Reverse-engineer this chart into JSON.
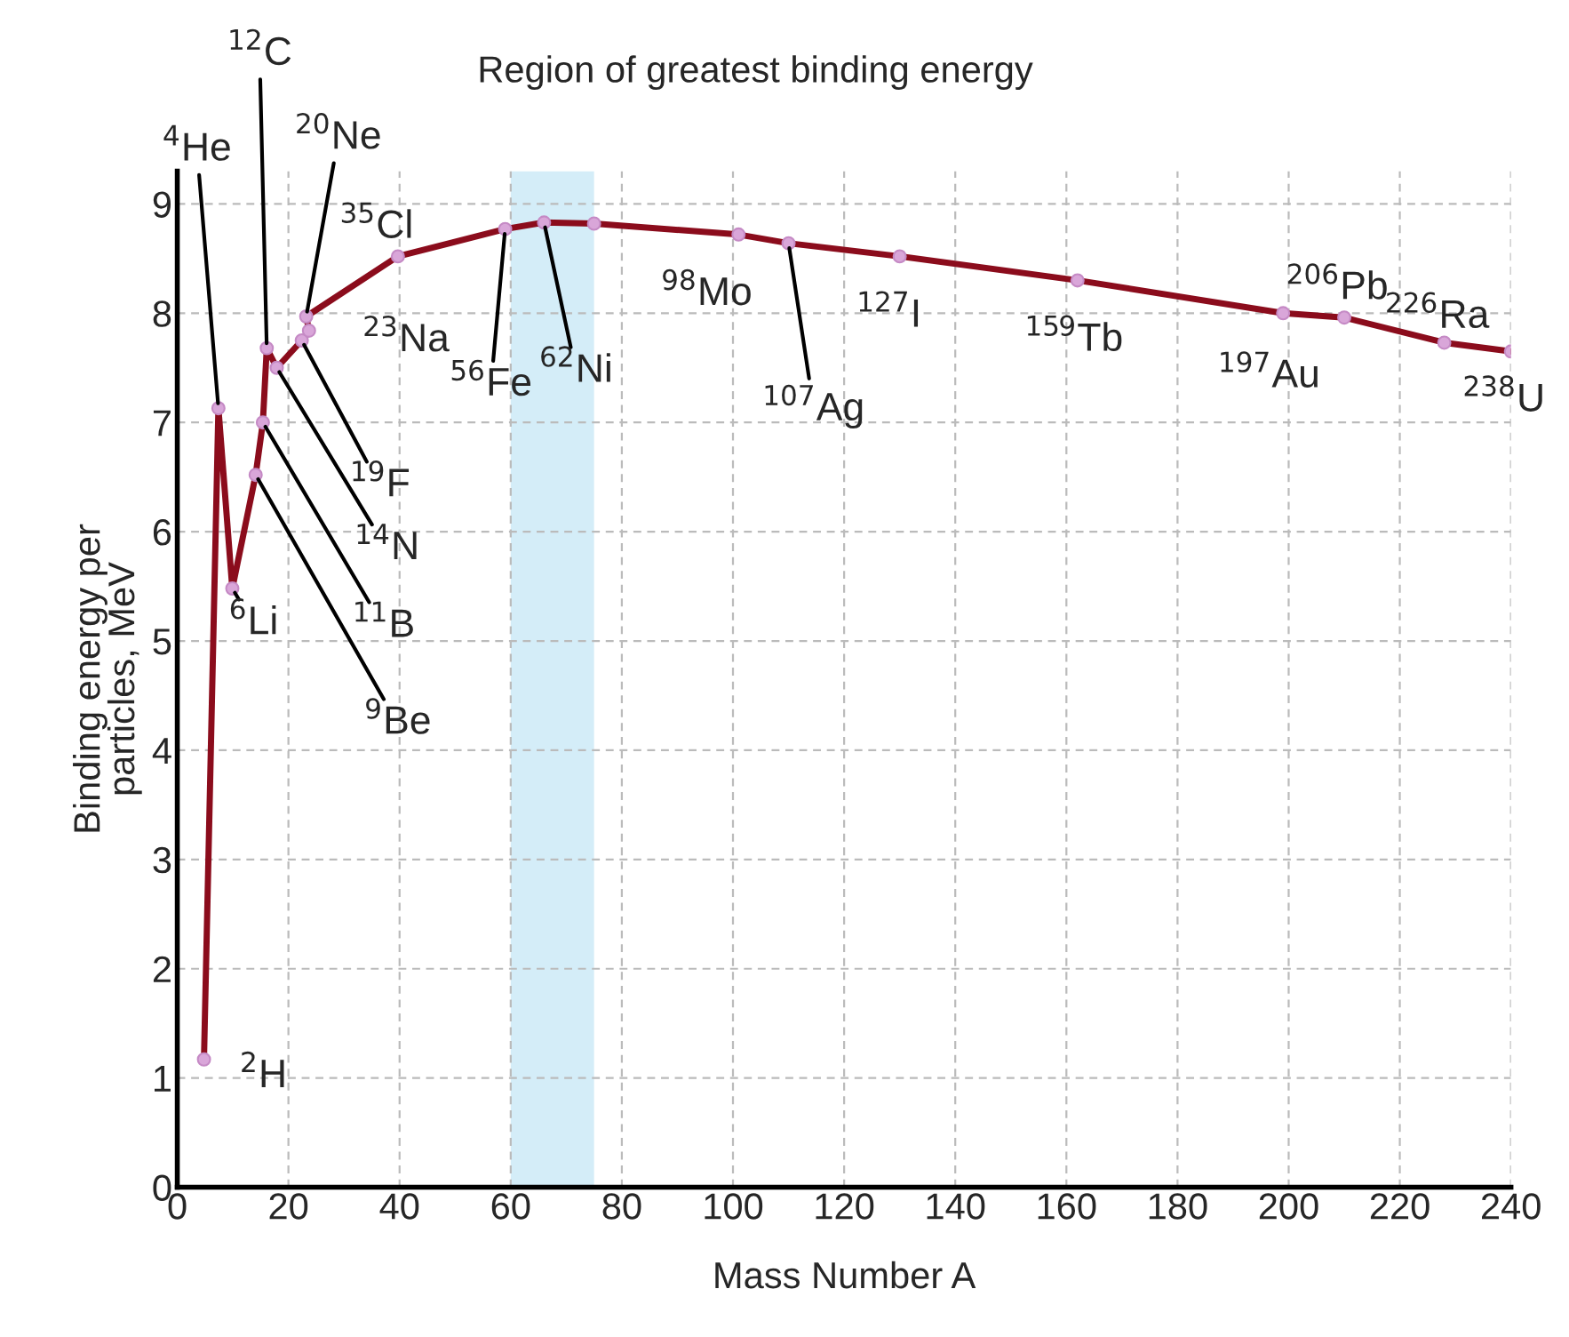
{
  "chart_data": {
    "type": "line",
    "xlabel": "Mass Number A",
    "ylabel": "Binding energy per\nparticles, MeV",
    "x": [
      4.8,
      7.4,
      9.9,
      14.1,
      15.4,
      16.1,
      17.9,
      22.4,
      23.7,
      23.2,
      39.7,
      59,
      66,
      75,
      101,
      110,
      130,
      162,
      199,
      210,
      228,
      240
    ],
    "series": [
      {
        "color": "#8b0c1c",
        "values": [
          1.17,
          7.13,
          5.48,
          6.52,
          7.0,
          7.68,
          7.5,
          7.75,
          7.84,
          7.97,
          8.52,
          8.77,
          8.83,
          8.82,
          8.72,
          8.64,
          8.52,
          8.3,
          8.0,
          7.96,
          7.73,
          7.65
        ]
      }
    ],
    "marker": "circle",
    "line_style": "solid",
    "xlim": [
      0,
      240
    ],
    "xticks": [
      0,
      20,
      40,
      60,
      80,
      100,
      120,
      140,
      160,
      180,
      200,
      220,
      240
    ],
    "ylim": [
      0,
      9.3
    ],
    "yticks": [
      0,
      1,
      2,
      3,
      4,
      5,
      6,
      7,
      8,
      9
    ],
    "grid": true,
    "bands": [
      {
        "axis": "x",
        "from": 60,
        "to": 75,
        "label": "Region of greatest binding energy",
        "color": "#d4edf8"
      }
    ],
    "annotations": [
      {
        "text": "$^{2}$H",
        "x": 4.8,
        "y": 1.17
      },
      {
        "text": "$^{4}$He",
        "x": 7.4,
        "y": 7.13
      },
      {
        "text": "$^{6}$Li",
        "x": 9.9,
        "y": 5.48
      },
      {
        "text": "$^{9}$Be",
        "x": 14.1,
        "y": 6.52
      },
      {
        "text": "$^{11}$B",
        "x": 15.4,
        "y": 7.0
      },
      {
        "text": "$^{12}$C",
        "x": 16.1,
        "y": 7.68
      },
      {
        "text": "$^{14}$N",
        "x": 17.9,
        "y": 7.5
      },
      {
        "text": "$^{19}$F",
        "x": 22.4,
        "y": 7.75
      },
      {
        "text": "$^{23}$Na",
        "x": 23.7,
        "y": 7.84
      },
      {
        "text": "$^{20}$Ne",
        "x": 23.2,
        "y": 7.97
      },
      {
        "text": "$^{35}$Cl",
        "x": 39.7,
        "y": 8.52
      },
      {
        "text": "$^{56}$Fe",
        "x": 59,
        "y": 8.77
      },
      {
        "text": "$^{62}$Ni",
        "x": 66,
        "y": 8.83
      },
      {
        "text": "$^{98}$Mo",
        "x": 101,
        "y": 8.72
      },
      {
        "text": "$^{107}$Ag",
        "x": 110,
        "y": 8.64
      },
      {
        "text": "$^{127}$I",
        "x": 130,
        "y": 8.52
      },
      {
        "text": "$^{159}$Tb",
        "x": 162,
        "y": 8.3
      },
      {
        "text": "$^{197}$Au",
        "x": 199,
        "y": 8.0
      },
      {
        "text": "$^{206}$Pb",
        "x": 210,
        "y": 7.96
      },
      {
        "text": "$^{226}$Ra",
        "x": 228,
        "y": 7.73
      },
      {
        "text": "$^{238}$U",
        "x": 240,
        "y": 7.65
      }
    ]
  }
}
